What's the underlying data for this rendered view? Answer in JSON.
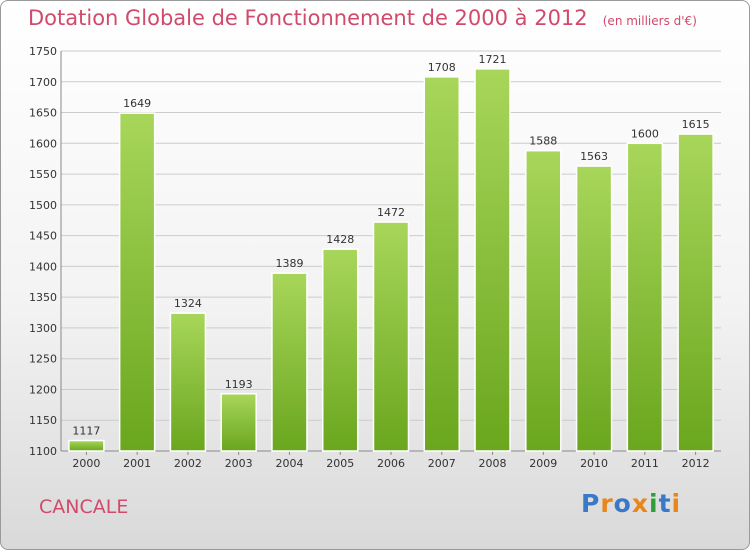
{
  "header": {
    "title": "Dotation Globale de Fonctionnement de 2000 à 2012",
    "unit": "(en milliers d'€)"
  },
  "footer": {
    "commune": "CANCALE",
    "brand": "Proxiti",
    "brand_colors": [
      "#3a78c8",
      "#e8861a",
      "#3a78c8",
      "#e8861a",
      "#2f9e3a",
      "#3a78c8",
      "#e8861a"
    ]
  },
  "colors": {
    "title": "#d14a6b",
    "bar_light": "#a8d65a",
    "bar_dark": "#6aa61e",
    "grid": "#cccccc"
  },
  "chart_data": {
    "type": "bar",
    "title": "Dotation Globale de Fonctionnement de 2000 à 2012",
    "subtitle": "(en milliers d'€)",
    "xlabel": "",
    "ylabel": "",
    "categories": [
      "2000",
      "2001",
      "2002",
      "2003",
      "2004",
      "2005",
      "2006",
      "2007",
      "2008",
      "2009",
      "2010",
      "2011",
      "2012"
    ],
    "values": [
      1117,
      1649,
      1324,
      1193,
      1389,
      1428,
      1472,
      1708,
      1721,
      1588,
      1563,
      1600,
      1615
    ],
    "ylim": [
      1100,
      1750
    ],
    "yticks": [
      1100,
      1150,
      1200,
      1250,
      1300,
      1350,
      1400,
      1450,
      1500,
      1550,
      1600,
      1650,
      1700,
      1750
    ],
    "grid": true,
    "data_labels": true
  }
}
